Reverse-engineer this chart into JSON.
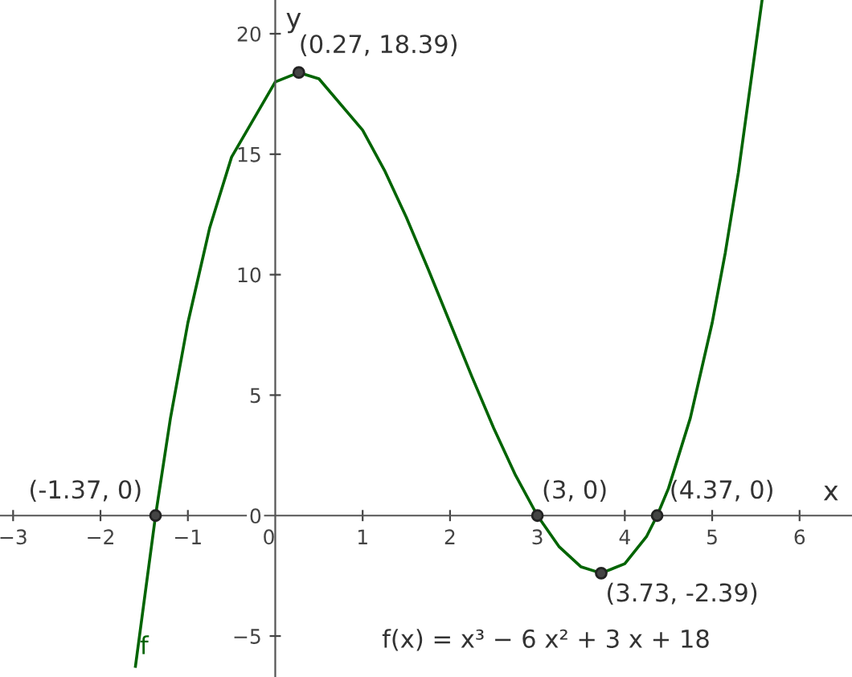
{
  "chart_data": {
    "type": "line",
    "xlabel": "x",
    "ylabel": "y",
    "xlim": [
      -3.15,
      6.6
    ],
    "ylim": [
      -6.7,
      21.4
    ],
    "xticks": [
      -3,
      -2,
      -1,
      0,
      1,
      2,
      3,
      4,
      5,
      6
    ],
    "yticks": [
      -5,
      0,
      5,
      10,
      15,
      20
    ],
    "grid": false,
    "legend": false,
    "series": [
      {
        "name": "f",
        "color": "#006400",
        "x": [
          -1.6,
          -1.37,
          -1.2,
          -1,
          -0.75,
          -0.5,
          0,
          0.27,
          0.5,
          1,
          1.25,
          1.5,
          1.75,
          2,
          2.25,
          2.5,
          2.75,
          3,
          3.25,
          3.5,
          3.73,
          4,
          4.25,
          4.37,
          4.5,
          4.75,
          5,
          5.15,
          5.3,
          5.57
        ],
        "values": [
          -6.26,
          0,
          4.03,
          8,
          11.95,
          14.88,
          18,
          18.39,
          18.13,
          16,
          14.33,
          12.38,
          10.23,
          8,
          5.77,
          3.63,
          1.67,
          0,
          -1.3,
          -2.13,
          -2.39,
          -2,
          -0.86,
          0,
          1.13,
          4.05,
          8,
          10.91,
          14.24,
          21.37
        ]
      },
      {
        "type": "scatter",
        "color": "#444444",
        "marker": "circle",
        "x": [
          -1.37,
          0.27,
          3,
          3.73,
          4.37
        ],
        "values": [
          0,
          18.39,
          0,
          -2.39,
          0
        ]
      }
    ],
    "annotations": [
      {
        "text": "(-1.37, 0)",
        "x": -1.37,
        "y": 0
      },
      {
        "text": "(0.27, 18.39)",
        "x": 0.27,
        "y": 18.39
      },
      {
        "text": "(3, 0)",
        "x": 3,
        "y": 0
      },
      {
        "text": "(3.73, -2.39)",
        "x": 3.73,
        "y": -2.39
      },
      {
        "text": "(4.37, 0)",
        "x": 4.37,
        "y": 0
      },
      "f(x) = x³ − 6 x² + 3 x + 18"
    ]
  }
}
